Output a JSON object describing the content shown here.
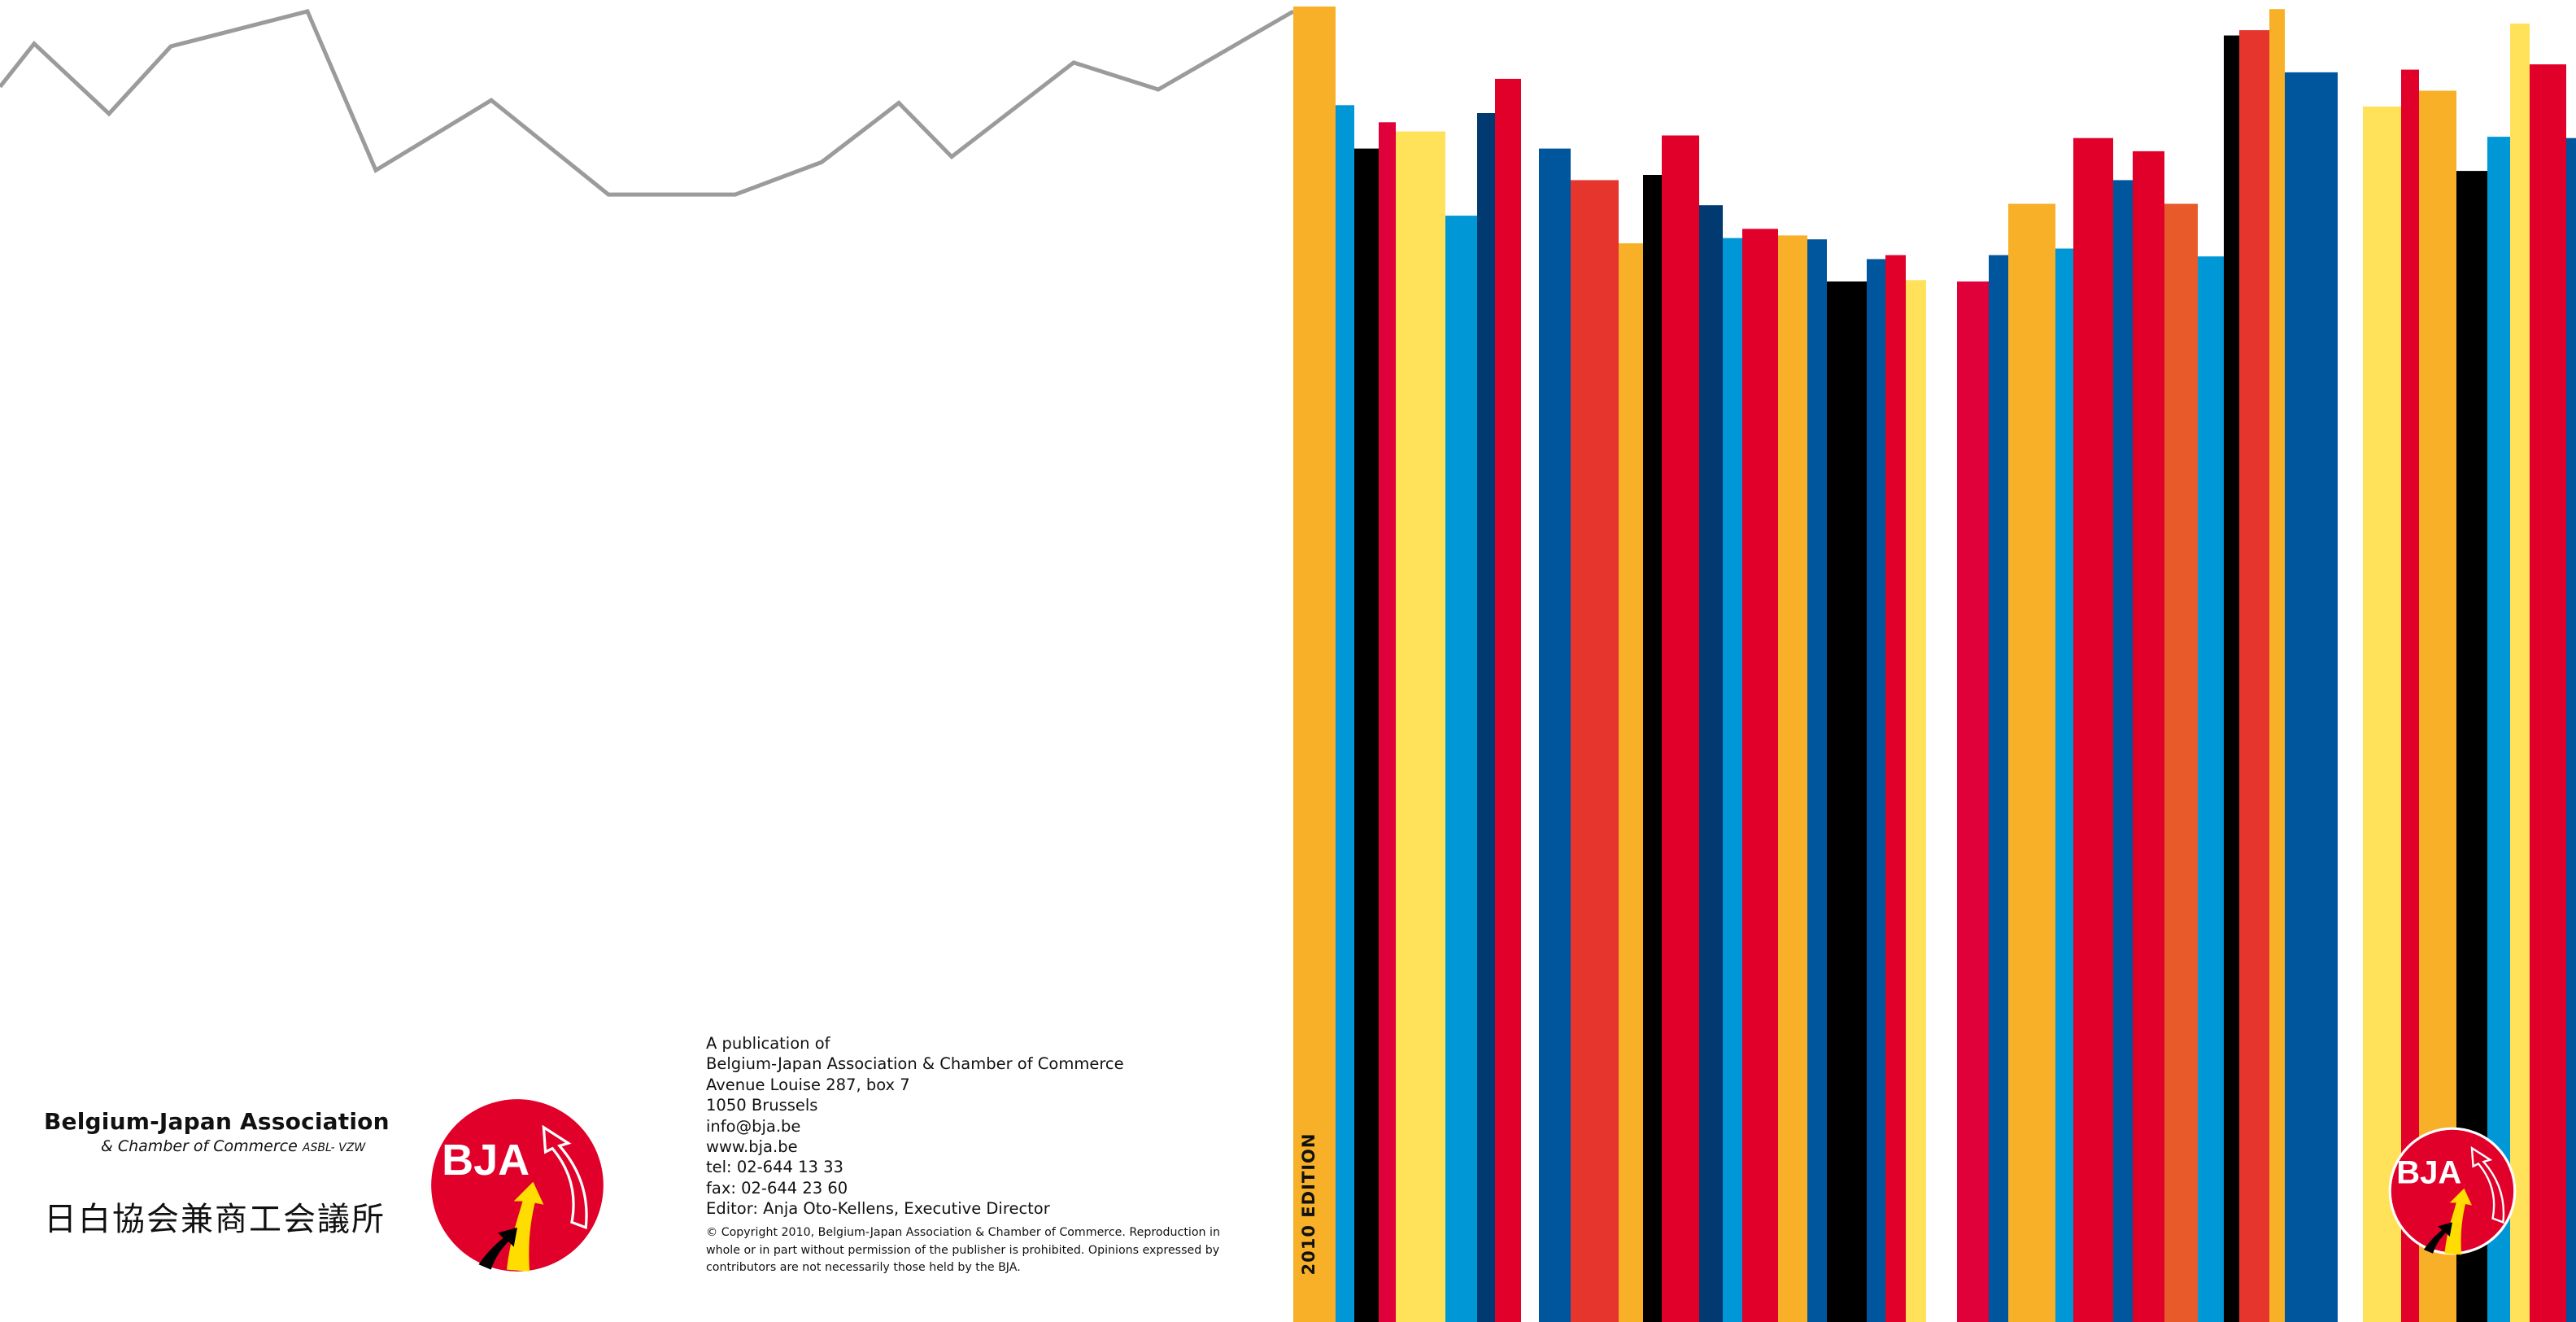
{
  "organization": {
    "name": "Belgium-Japan Association",
    "subtitle": "& Chamber of Commerce",
    "legal_form": "ASBL- VZW",
    "name_japanese": "日白協会兼商工会議所"
  },
  "logo": {
    "text": "BJA",
    "colors": {
      "circle": "#e0002a",
      "yellow": "#ffdd00",
      "black": "#000000",
      "white": "#ffffff"
    }
  },
  "publication": {
    "lines": [
      "A publication of",
      "Belgium-Japan Association & Chamber of Commerce",
      "Avenue Louise 287, box 7",
      "1050 Brussels",
      "info@bja.be",
      "www.bja.be",
      "tel: 02-644 13 33",
      "fax: 02-644 23 60",
      "Editor: Anja Oto-Kellens, Executive Director"
    ],
    "copyright": "© Copyright 2010, Belgium-Japan Association & Chamber of Commerce. Reproduction in whole or in part without permission of the publisher is prohibited. Opinions expressed by contributors are not necessarily those held by the BJA."
  },
  "spine": {
    "edition": "2010 EDITION"
  },
  "decoration": {
    "line_color": "#9b9b9b",
    "line_values": [
      0.72,
      0.88,
      0.62,
      0.87,
      1.0,
      0.41,
      0.67,
      0.32,
      0.32,
      0.44,
      0.66,
      0.46,
      0.81,
      0.71,
      1.0
    ],
    "bar_levels": [
      {
        "level": 1.0,
        "color": "#f7b027"
      },
      {
        "level": 0.925,
        "color": "#0097d6"
      },
      {
        "level": 0.892,
        "color": "#000000"
      },
      {
        "level": 0.912,
        "color": "#e0003a"
      },
      {
        "level": 0.905,
        "color": "#ffe15a"
      },
      {
        "level": 0.841,
        "color": "#0097d6"
      },
      {
        "level": 0.919,
        "color": "#003a70"
      },
      {
        "level": 0.945,
        "color": "#e0002a"
      },
      {
        "level": 0.0,
        "color": "#ffffff"
      },
      {
        "level": 0.892,
        "color": "#00569d"
      },
      {
        "level": 0.868,
        "color": "#e5352c"
      },
      {
        "level": 0.82,
        "color": "#f7b027"
      },
      {
        "level": 0.872,
        "color": "#000000"
      },
      {
        "level": 0.902,
        "color": "#e0002a"
      },
      {
        "level": 0.849,
        "color": "#003a70"
      },
      {
        "level": 0.824,
        "color": "#0097d6"
      },
      {
        "level": 0.831,
        "color": "#e0002a"
      },
      {
        "level": 0.826,
        "color": "#f7b027"
      },
      {
        "level": 0.823,
        "color": "#00569d"
      },
      {
        "level": 0.791,
        "color": "#000000"
      },
      {
        "level": 0.808,
        "color": "#00569d"
      },
      {
        "level": 0.811,
        "color": "#e0002a"
      },
      {
        "level": 0.792,
        "color": "#ffe15a"
      },
      {
        "level": 0.0,
        "color": "#ffffff"
      },
      {
        "level": 0.791,
        "color": "#e0003a"
      },
      {
        "level": 0.811,
        "color": "#00569d"
      },
      {
        "level": 0.85,
        "color": "#f7b027"
      },
      {
        "level": 0.816,
        "color": "#0097d6"
      },
      {
        "level": 0.9,
        "color": "#e0002a"
      },
      {
        "level": 0.868,
        "color": "#00569d"
      },
      {
        "level": 0.89,
        "color": "#e0002a"
      },
      {
        "level": 0.85,
        "color": "#e85a2a"
      },
      {
        "level": 0.81,
        "color": "#0097d6"
      },
      {
        "level": 0.978,
        "color": "#000000"
      },
      {
        "level": 0.982,
        "color": "#e5352c"
      },
      {
        "level": 0.998,
        "color": "#f7b027"
      },
      {
        "level": 0.95,
        "color": "#00569d"
      },
      {
        "level": 0.0,
        "color": "#ffffff"
      },
      {
        "level": 0.924,
        "color": "#ffe15a"
      },
      {
        "level": 0.952,
        "color": "#e0002a"
      },
      {
        "level": 0.936,
        "color": "#f7b027"
      },
      {
        "level": 0.875,
        "color": "#000000"
      },
      {
        "level": 0.901,
        "color": "#0097d6"
      },
      {
        "level": 0.987,
        "color": "#ffe15a"
      },
      {
        "level": 0.956,
        "color": "#e0002a"
      },
      {
        "level": 0.9,
        "color": "#00569d"
      }
    ]
  }
}
